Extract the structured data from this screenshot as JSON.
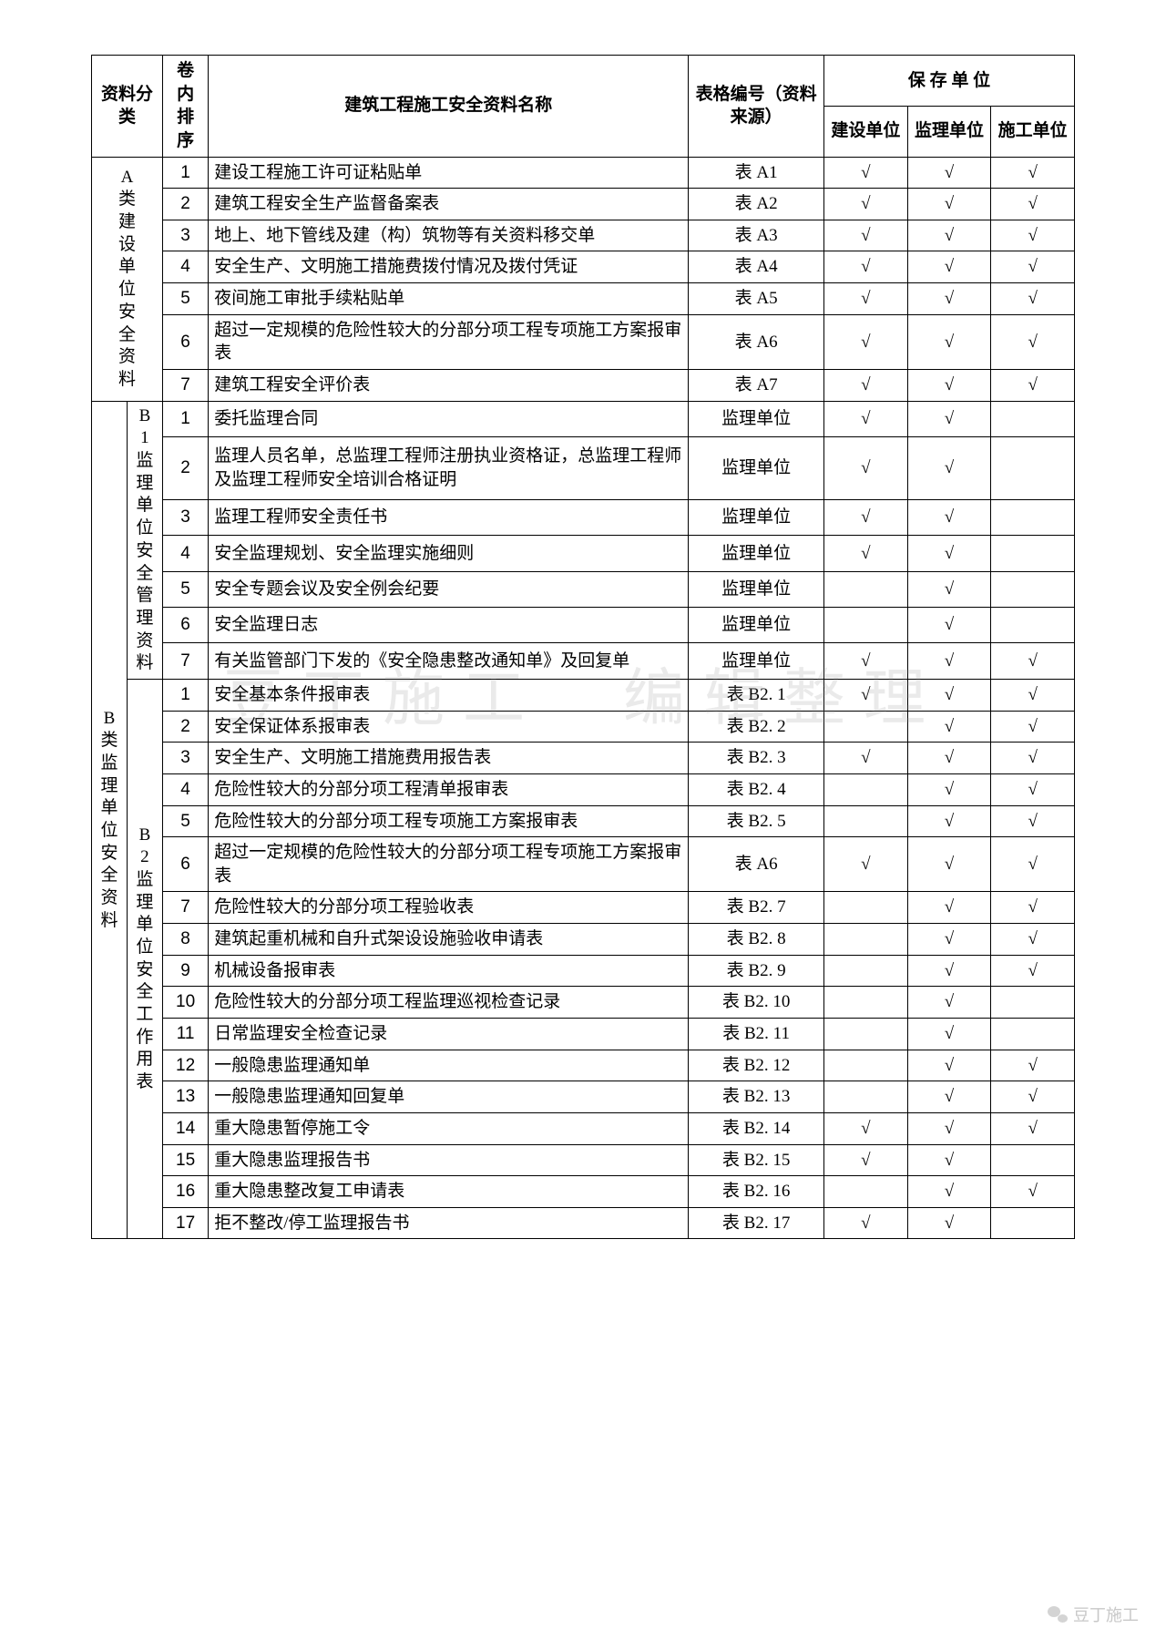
{
  "headers": {
    "category": "资料分类",
    "seq": "卷内排序",
    "title": "建筑工程施工安全资料名称",
    "form": "表格编号（资料来源）",
    "storage": "保 存 单 位",
    "unit_build": "建设单位",
    "unit_supervise": "监理单位",
    "unit_construct": "施工单位"
  },
  "check_symbol": "√",
  "groups": [
    {
      "outer_label": "",
      "sub_label": "A 类建设单位安全资料",
      "sub_span_outer": true,
      "rows": [
        {
          "seq": "1",
          "name": "建设工程施工许可证粘贴单",
          "form": "表 A1",
          "c": [
            1,
            1,
            1
          ]
        },
        {
          "seq": "2",
          "name": "建筑工程安全生产监督备案表",
          "form": "表 A2",
          "c": [
            1,
            1,
            1
          ]
        },
        {
          "seq": "3",
          "name": "地上、地下管线及建（构）筑物等有关资料移交单",
          "form": "表 A3",
          "c": [
            1,
            1,
            1
          ]
        },
        {
          "seq": "4",
          "name": "安全生产、文明施工措施费拨付情况及拨付凭证",
          "form": "表 A4",
          "c": [
            1,
            1,
            1
          ]
        },
        {
          "seq": "5",
          "name": "夜间施工审批手续粘贴单",
          "form": "表 A5",
          "c": [
            1,
            1,
            1
          ]
        },
        {
          "seq": "6",
          "name": "超过一定规模的危险性较大的分部分项工程专项施工方案报审表",
          "form": "表 A6",
          "c": [
            1,
            1,
            1
          ]
        },
        {
          "seq": "7",
          "name": "建筑工程安全评价表",
          "form": "表 A7",
          "c": [
            1,
            1,
            1
          ]
        }
      ]
    },
    {
      "outer_label": "B 类监理单位安全资料",
      "sub_label": "B1 监理单位安全管理资料",
      "rows": [
        {
          "seq": "1",
          "name": "委托监理合同",
          "form": "监理单位",
          "c": [
            1,
            1,
            0
          ]
        },
        {
          "seq": "2",
          "name": "监理人员名单，总监理工程师注册执业资格证，总监理工程师及监理工程师安全培训合格证明",
          "form": "监理单位",
          "c": [
            1,
            1,
            0
          ]
        },
        {
          "seq": "3",
          "name": "监理工程师安全责任书",
          "form": "监理单位",
          "c": [
            1,
            1,
            0
          ]
        },
        {
          "seq": "4",
          "name": "安全监理规划、安全监理实施细则",
          "form": "监理单位",
          "c": [
            1,
            1,
            0
          ]
        },
        {
          "seq": "5",
          "name": "安全专题会议及安全例会纪要",
          "form": "监理单位",
          "c": [
            0,
            1,
            0
          ]
        },
        {
          "seq": "6",
          "name": "安全监理日志",
          "form": "监理单位",
          "c": [
            0,
            1,
            0
          ]
        },
        {
          "seq": "7",
          "name": "有关监管部门下发的《安全隐患整改通知单》及回复单",
          "form": "监理单位",
          "c": [
            1,
            1,
            1
          ]
        }
      ]
    },
    {
      "outer_label": "",
      "sub_label": "B2 监理单位安全工作用表",
      "rows": [
        {
          "seq": "1",
          "name": "安全基本条件报审表",
          "form": "表 B2. 1",
          "c": [
            1,
            1,
            1
          ]
        },
        {
          "seq": "2",
          "name": "安全保证体系报审表",
          "form": "表 B2. 2",
          "c": [
            0,
            1,
            1
          ]
        },
        {
          "seq": "3",
          "name": "安全生产、文明施工措施费用报告表",
          "form": "表 B2. 3",
          "c": [
            1,
            1,
            1
          ]
        },
        {
          "seq": "4",
          "name": "危险性较大的分部分项工程清单报审表",
          "form": "表 B2. 4",
          "c": [
            0,
            1,
            1
          ]
        },
        {
          "seq": "5",
          "name": "危险性较大的分部分项工程专项施工方案报审表",
          "form": "表 B2. 5",
          "c": [
            0,
            1,
            1
          ]
        },
        {
          "seq": "6",
          "name": "超过一定规模的危险性较大的分部分项工程专项施工方案报审表",
          "form": "表 A6",
          "c": [
            1,
            1,
            1
          ]
        },
        {
          "seq": "7",
          "name": "危险性较大的分部分项工程验收表",
          "form": "表 B2. 7",
          "c": [
            0,
            1,
            1
          ]
        },
        {
          "seq": "8",
          "name": "建筑起重机械和自升式架设设施验收申请表",
          "form": "表 B2. 8",
          "c": [
            0,
            1,
            1
          ]
        },
        {
          "seq": "9",
          "name": "机械设备报审表",
          "form": "表 B2. 9",
          "c": [
            0,
            1,
            1
          ]
        },
        {
          "seq": "10",
          "name": "危险性较大的分部分项工程监理巡视检查记录",
          "form": "表 B2. 10",
          "c": [
            0,
            1,
            0
          ]
        },
        {
          "seq": "11",
          "name": "日常监理安全检查记录",
          "form": "表 B2. 11",
          "c": [
            0,
            1,
            0
          ]
        },
        {
          "seq": "12",
          "name": "一般隐患监理通知单",
          "form": "表 B2. 12",
          "c": [
            0,
            1,
            1
          ]
        },
        {
          "seq": "13",
          "name": "一般隐患监理通知回复单",
          "form": "表 B2. 13",
          "c": [
            0,
            1,
            1
          ]
        },
        {
          "seq": "14",
          "name": "重大隐患暂停施工令",
          "form": "表 B2. 14",
          "c": [
            1,
            1,
            1
          ]
        },
        {
          "seq": "15",
          "name": "重大隐患监理报告书",
          "form": "表 B2. 15",
          "c": [
            1,
            1,
            0
          ]
        },
        {
          "seq": "16",
          "name": "重大隐患整改复工申请表",
          "form": "表 B2. 16",
          "c": [
            0,
            1,
            1
          ]
        },
        {
          "seq": "17",
          "name": "拒不整改/停工监理报告书",
          "form": "表 B2. 17",
          "c": [
            1,
            1,
            0
          ]
        }
      ]
    }
  ],
  "watermark_main": "豆丁施工　编辑整理",
  "watermark_bottom": "豆丁施工"
}
